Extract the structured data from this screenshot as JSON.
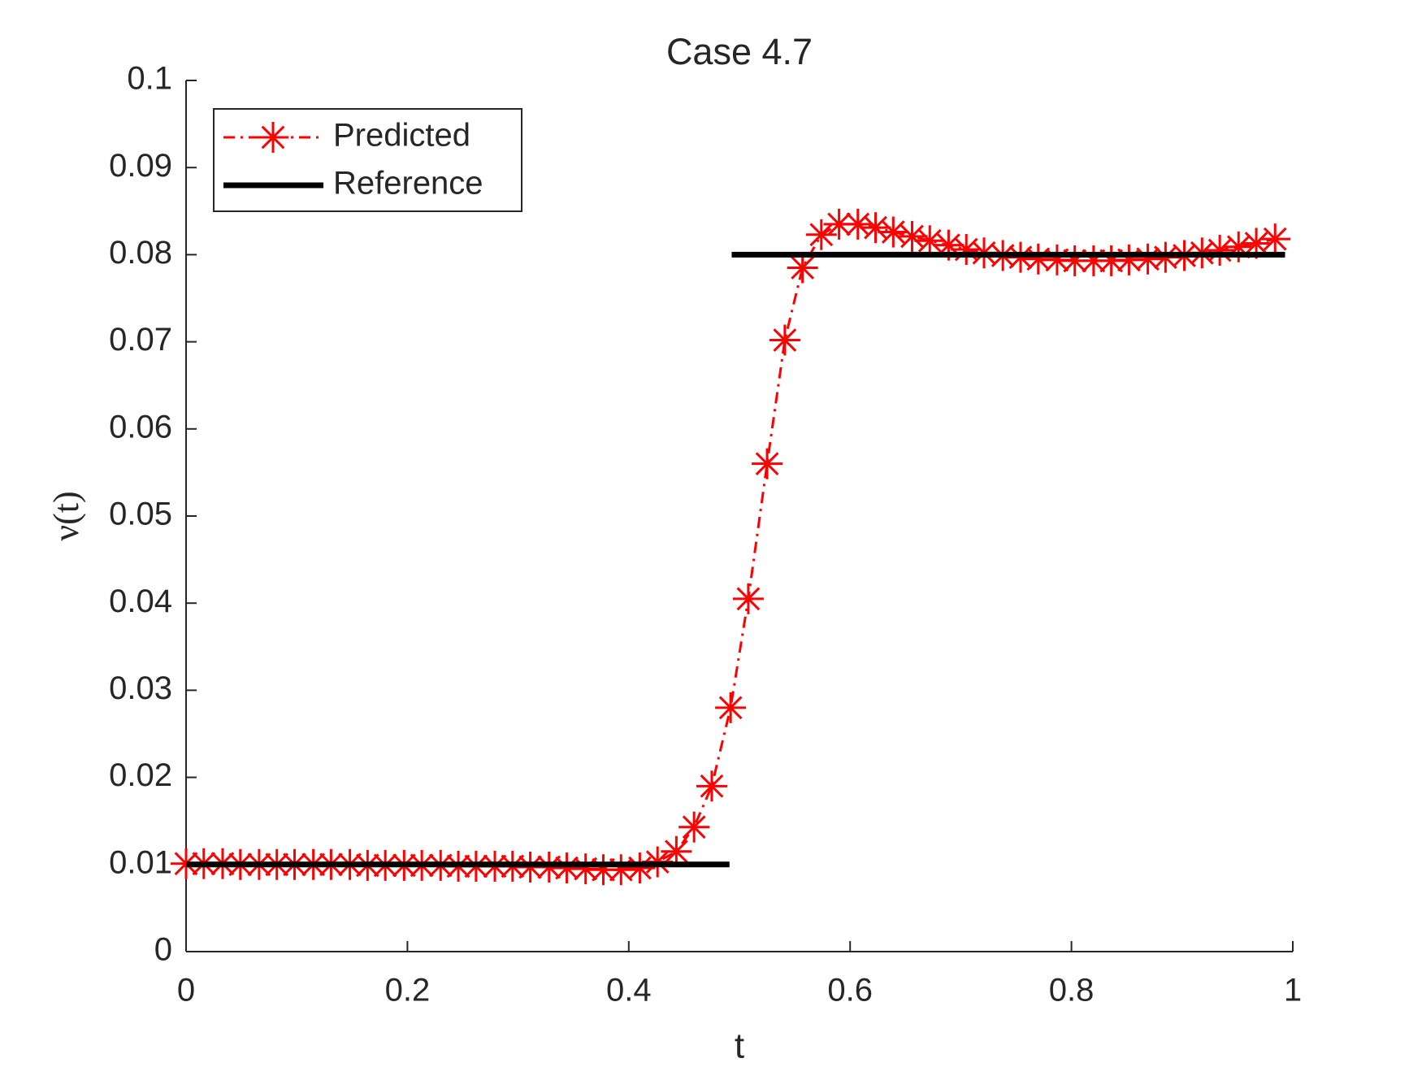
{
  "chart_data": {
    "type": "line",
    "title": "Case 4.7",
    "xlabel": "t",
    "ylabel": "ν(t)",
    "xlim": [
      0,
      1
    ],
    "xticks": [
      0,
      0.2,
      0.4,
      0.6,
      0.8,
      1
    ],
    "ylim": [
      0,
      0.1
    ],
    "yticks": [
      0,
      0.01,
      0.02,
      0.03,
      0.04,
      0.05,
      0.06,
      0.07,
      0.08,
      0.09,
      0.1
    ],
    "grid": false,
    "legend": "northwest",
    "series": [
      {
        "name": "Predicted",
        "color": "#ff0000",
        "x": [
          0,
          0.016,
          0.033,
          0.049,
          0.066,
          0.082,
          0.098,
          0.115,
          0.131,
          0.148,
          0.164,
          0.18,
          0.197,
          0.213,
          0.23,
          0.246,
          0.262,
          0.279,
          0.295,
          0.311,
          0.328,
          0.344,
          0.361,
          0.377,
          0.393,
          0.41,
          0.426,
          0.443,
          0.459,
          0.475,
          0.492,
          0.508,
          0.525,
          0.541,
          0.557,
          0.574,
          0.59,
          0.607,
          0.623,
          0.639,
          0.656,
          0.672,
          0.689,
          0.705,
          0.721,
          0.738,
          0.754,
          0.77,
          0.787,
          0.803,
          0.82,
          0.836,
          0.852,
          0.869,
          0.885,
          0.902,
          0.918,
          0.934,
          0.951,
          0.967,
          0.984
        ],
        "values": [
          0.0101,
          0.0101,
          0.0101,
          0.01,
          0.01,
          0.01,
          0.01,
          0.01,
          0.01,
          0.01,
          0.0099,
          0.0099,
          0.0099,
          0.0099,
          0.0099,
          0.0098,
          0.0098,
          0.0098,
          0.0098,
          0.0097,
          0.0097,
          0.0096,
          0.0095,
          0.0094,
          0.0094,
          0.0096,
          0.0103,
          0.0115,
          0.0143,
          0.019,
          0.028,
          0.0405,
          0.056,
          0.0702,
          0.0785,
          0.0823,
          0.0835,
          0.0835,
          0.0831,
          0.0826,
          0.0821,
          0.0816,
          0.0811,
          0.0806,
          0.0802,
          0.0799,
          0.0797,
          0.0795,
          0.0794,
          0.0793,
          0.0793,
          0.0793,
          0.0794,
          0.0795,
          0.0797,
          0.0799,
          0.0802,
          0.0805,
          0.0809,
          0.0813,
          0.0818
        ]
      },
      {
        "name": "Reference",
        "color": "#000000",
        "x": [
          0,
          0.491,
          null,
          0.493,
          0.993
        ],
        "values": [
          0.01,
          0.01,
          null,
          0.08,
          0.08
        ]
      }
    ]
  }
}
